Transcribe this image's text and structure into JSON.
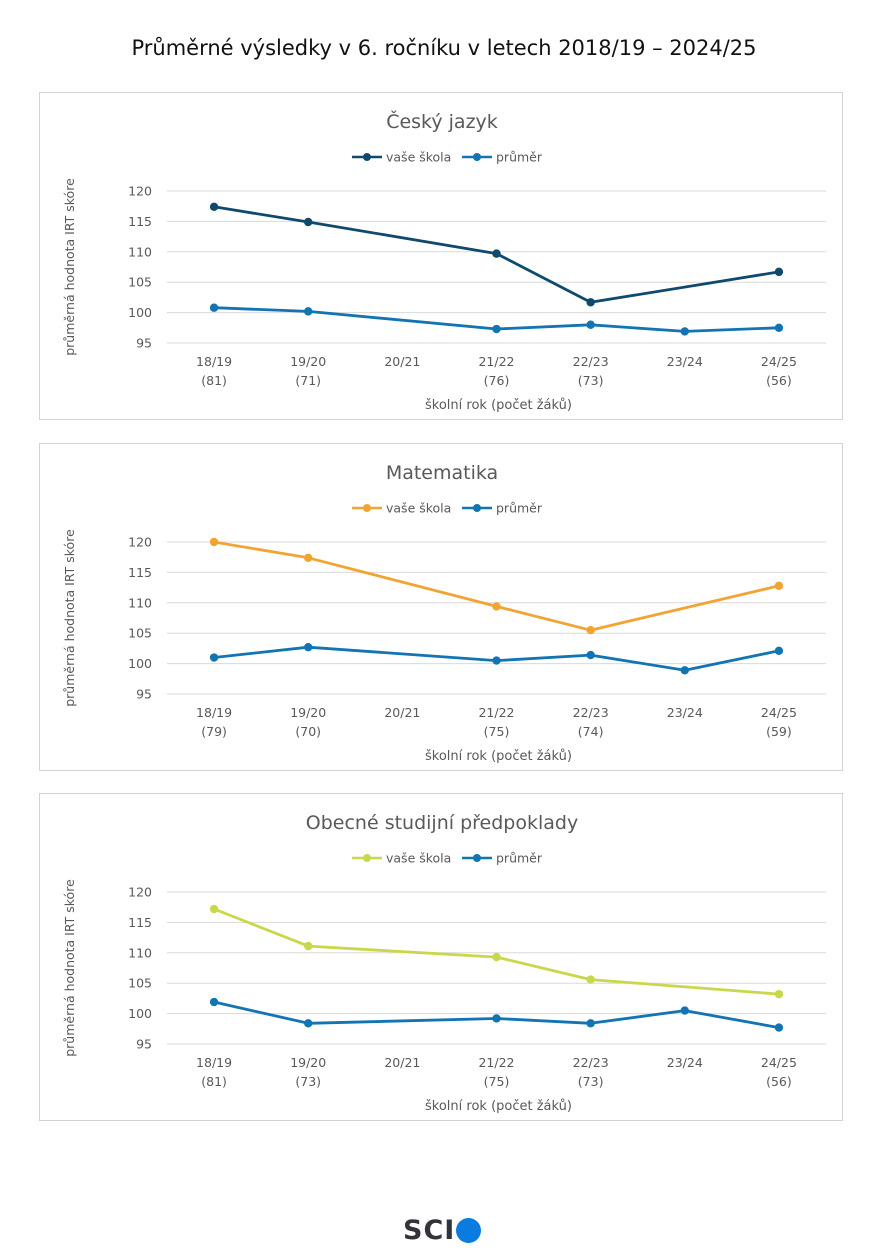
{
  "page": {
    "title": "Průměrné výsledky v 6. ročníku v letech 2018/19 – 2024/25"
  },
  "logo": {
    "text": "SCI",
    "name": "scio-logo"
  },
  "colors": {
    "average": "#1274b3",
    "cesky": "#0f4a6e",
    "matematika": "#f2a433",
    "osp": "#c9d74a",
    "grid": "#d9d9d9",
    "text": "#595959"
  },
  "chart_data": [
    {
      "type": "line",
      "title": "Český jazyk",
      "ylabel": "průměrná hodnota IRT skóre",
      "xlabel": "školní rok (počet žáků)",
      "ylim": [
        95,
        120
      ],
      "yticks": [
        95,
        100,
        105,
        110,
        115,
        120
      ],
      "grid": true,
      "legend_position": "top",
      "categories": [
        "18/19",
        "19/20",
        "20/21",
        "21/22",
        "22/23",
        "23/24",
        "24/25"
      ],
      "counts": [
        "(81)",
        "(71)",
        "",
        "(76)",
        "(73)",
        "",
        "(56)"
      ],
      "series": [
        {
          "name": "vaše škola",
          "color": "#0f4a6e",
          "values": [
            117.4,
            114.9,
            null,
            109.7,
            101.7,
            null,
            106.7
          ]
        },
        {
          "name": "průměr",
          "color": "#1274b3",
          "values": [
            100.8,
            100.2,
            null,
            97.3,
            98.0,
            96.9,
            97.5
          ]
        }
      ]
    },
    {
      "type": "line",
      "title": "Matematika",
      "ylabel": "průměrná hodnota IRT skóre",
      "xlabel": "školní rok (počet žáků)",
      "ylim": [
        95,
        120
      ],
      "yticks": [
        95,
        100,
        105,
        110,
        115,
        120
      ],
      "grid": true,
      "legend_position": "top",
      "categories": [
        "18/19",
        "19/20",
        "20/21",
        "21/22",
        "22/23",
        "23/24",
        "24/25"
      ],
      "counts": [
        "(79)",
        "(70)",
        "",
        "(75)",
        "(74)",
        "",
        "(59)"
      ],
      "series": [
        {
          "name": "vaše škola",
          "color": "#f2a433",
          "values": [
            120.0,
            117.4,
            null,
            109.4,
            105.5,
            null,
            112.8
          ]
        },
        {
          "name": "průměr",
          "color": "#1274b3",
          "values": [
            101.0,
            102.7,
            null,
            100.5,
            101.4,
            98.9,
            102.1
          ]
        }
      ]
    },
    {
      "type": "line",
      "title": "Obecné studijní předpoklady",
      "ylabel": "průměrná hodnota IRT skóre",
      "xlabel": "školní rok (počet žáků)",
      "ylim": [
        95,
        120
      ],
      "yticks": [
        95,
        100,
        105,
        110,
        115,
        120
      ],
      "grid": true,
      "legend_position": "top",
      "categories": [
        "18/19",
        "19/20",
        "20/21",
        "21/22",
        "22/23",
        "23/24",
        "24/25"
      ],
      "counts": [
        "(81)",
        "(73)",
        "",
        "(75)",
        "(73)",
        "",
        "(56)"
      ],
      "series": [
        {
          "name": "vaše škola",
          "color": "#c9d74a",
          "values": [
            117.2,
            111.1,
            null,
            109.3,
            105.6,
            null,
            103.2
          ]
        },
        {
          "name": "průměr",
          "color": "#1274b3",
          "values": [
            101.9,
            98.4,
            null,
            99.2,
            98.4,
            100.5,
            97.7
          ]
        }
      ]
    }
  ]
}
